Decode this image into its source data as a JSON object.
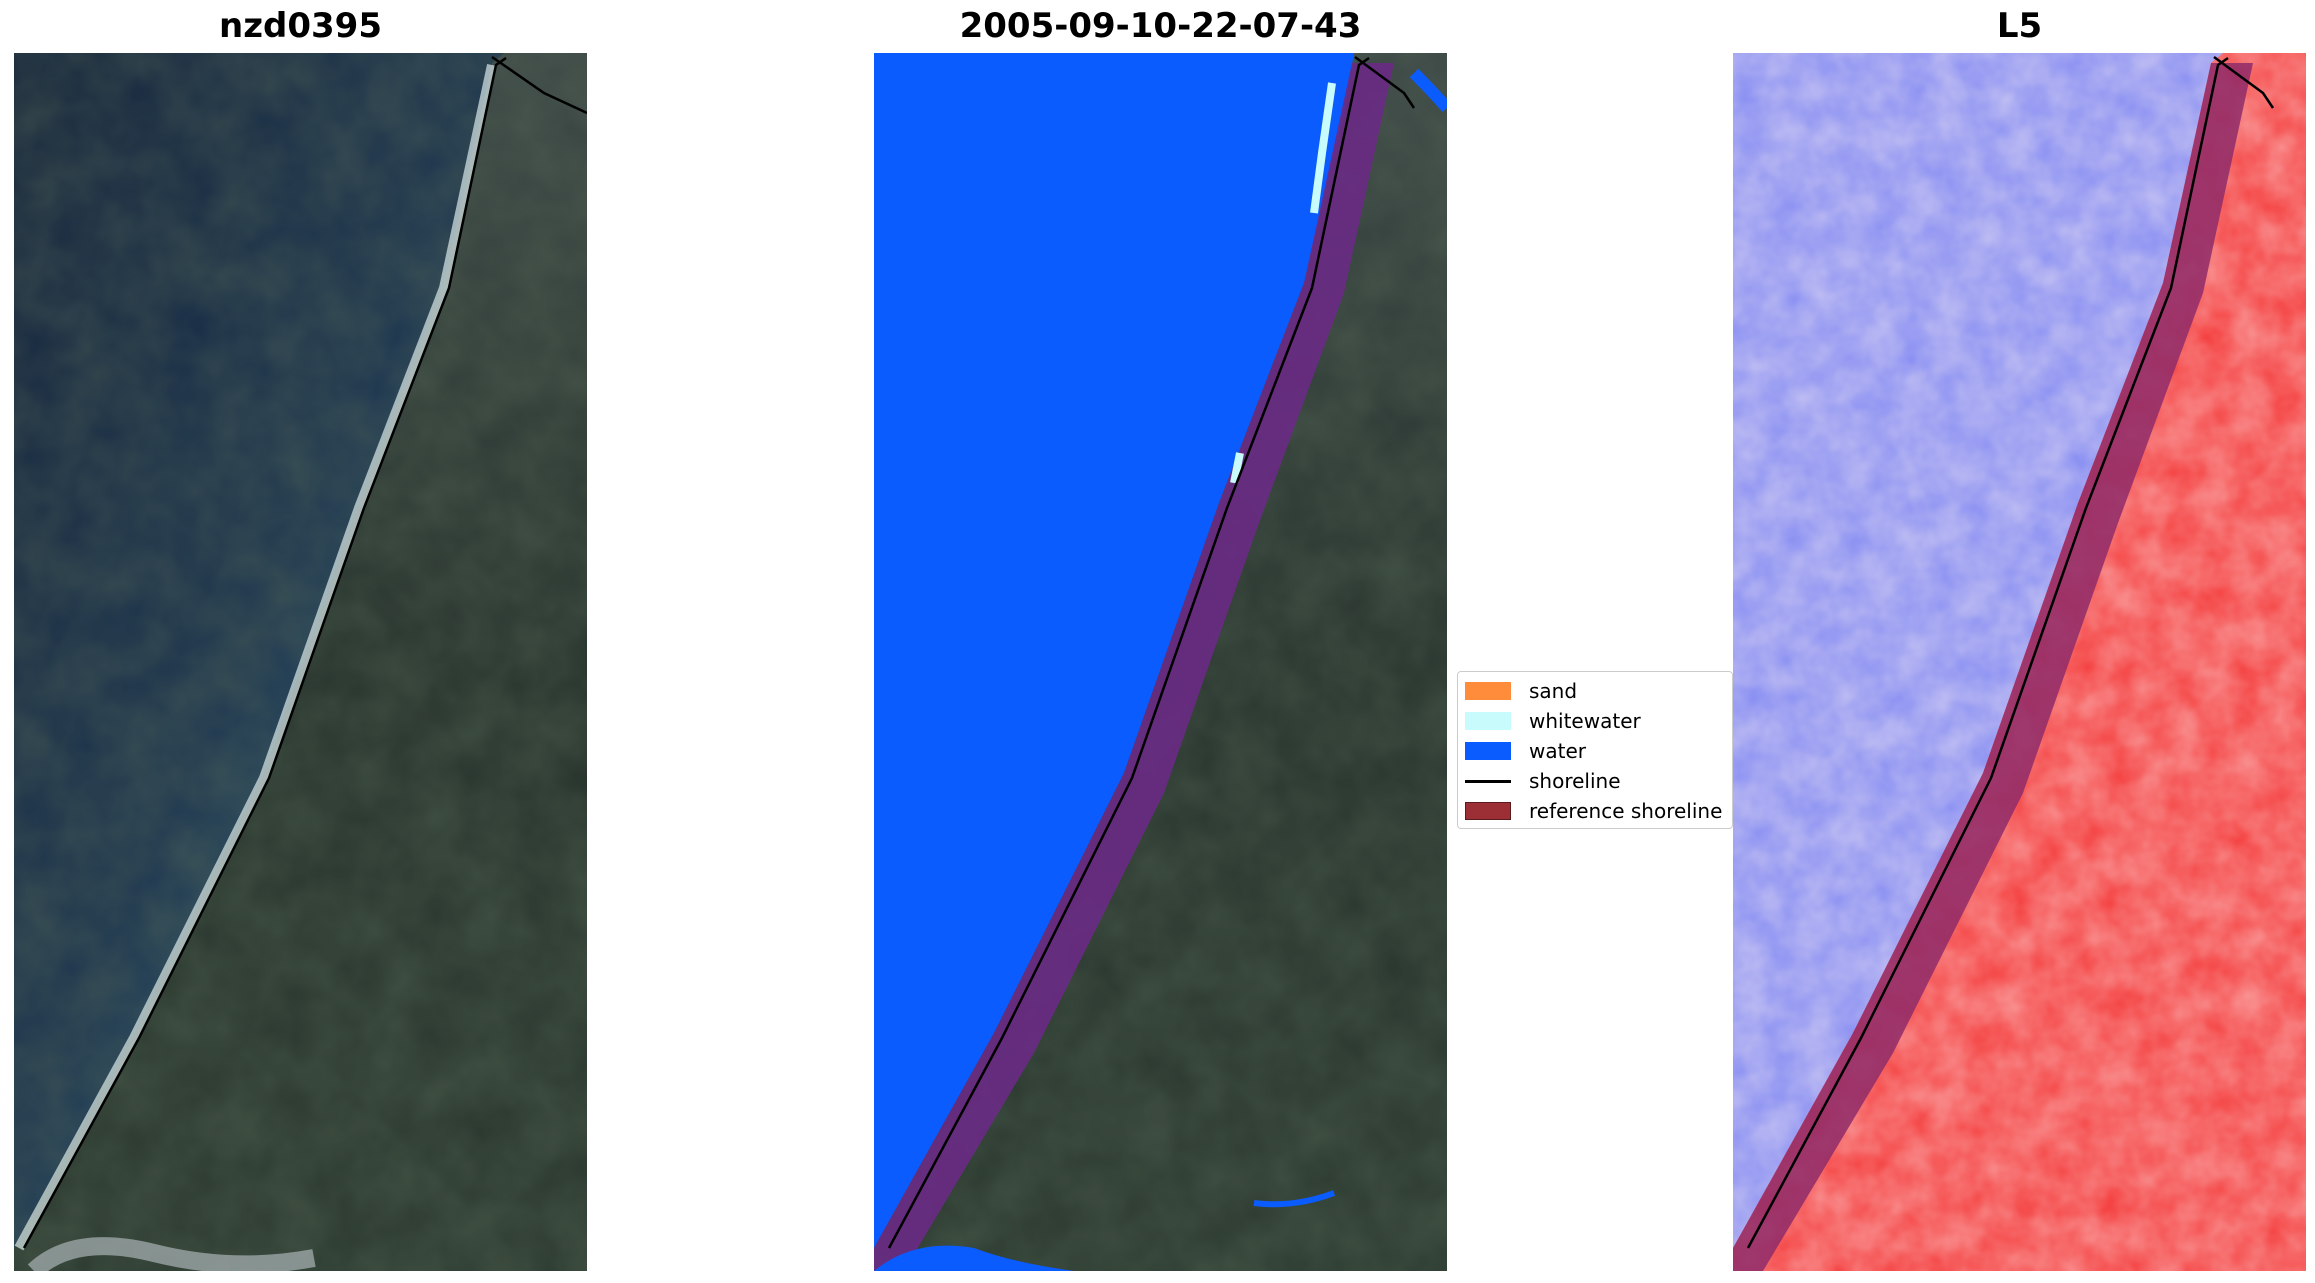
{
  "panels": [
    {
      "title": "nzd0395"
    },
    {
      "title": "2005-09-10-22-07-43"
    },
    {
      "title": "L5"
    }
  ],
  "legend": {
    "items": [
      {
        "label": "sand",
        "color": "#ff8c3a"
      },
      {
        "label": "whitewater",
        "color": "#c8fbfb"
      },
      {
        "label": "water",
        "color": "#0a5cff"
      },
      {
        "label": "shoreline",
        "color": "#000000"
      },
      {
        "label": "reference shoreline",
        "color": "#9b2f35"
      }
    ]
  },
  "colors": {
    "ocean_dark": "#1b2b44",
    "land_dark": "#24322f",
    "water_mask": "#0a5cff",
    "index_water": "#7e86f2",
    "index_land": "#f43a3a"
  }
}
